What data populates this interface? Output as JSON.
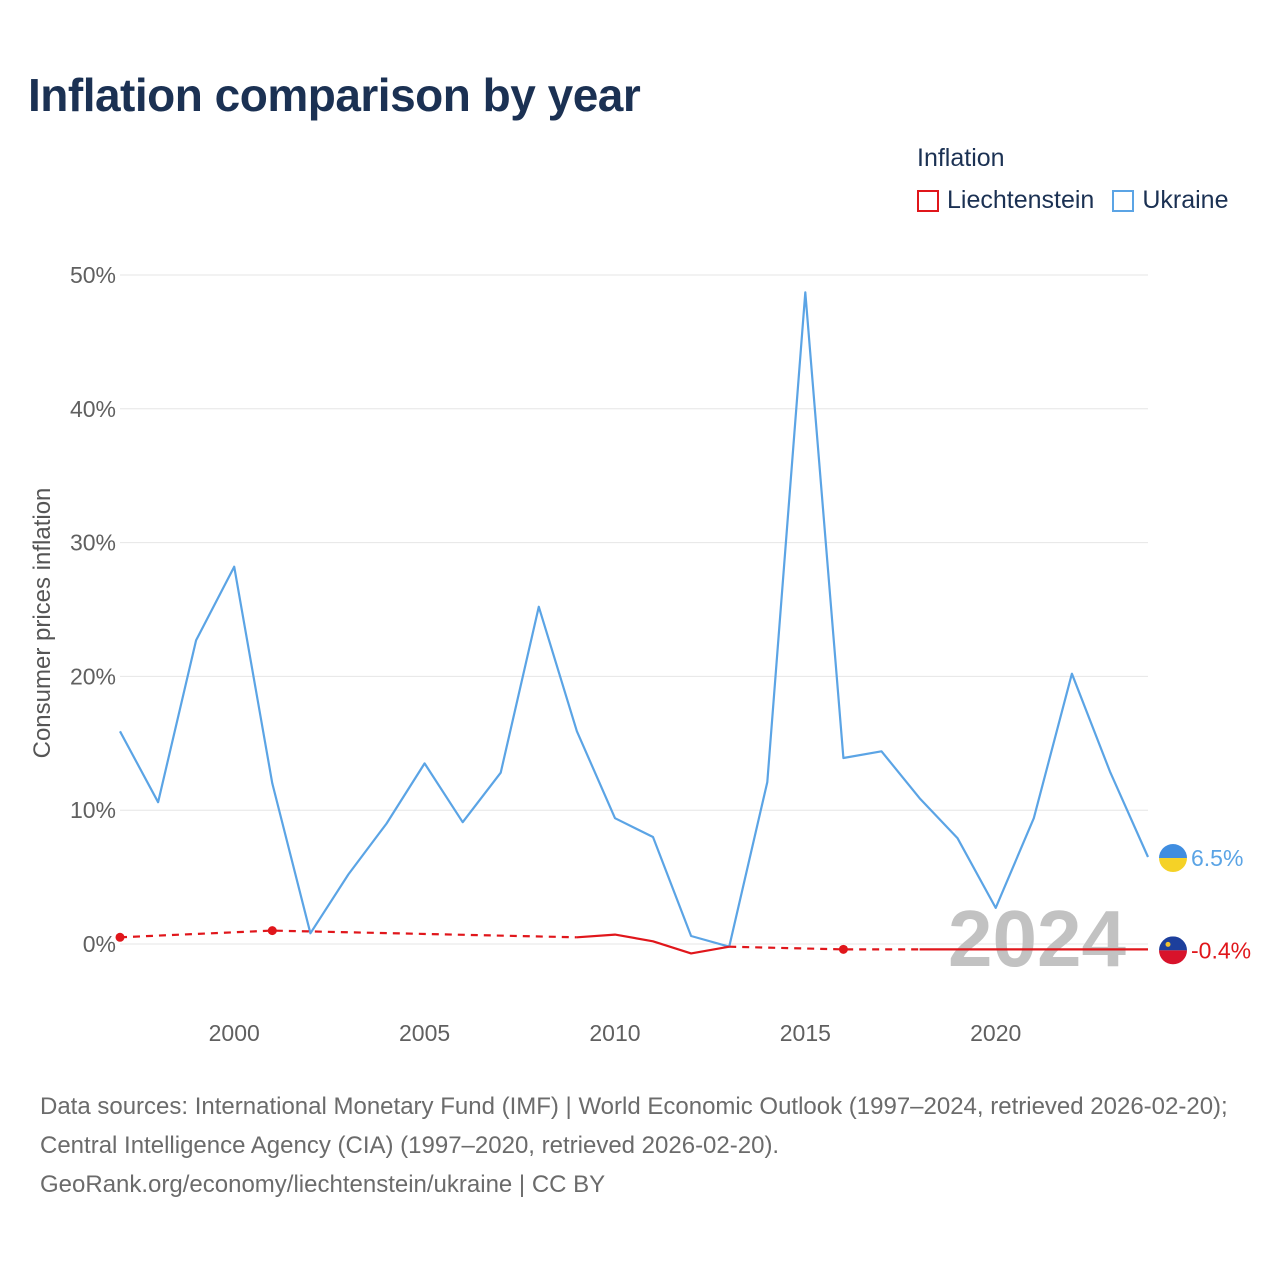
{
  "title": "Inflation comparison by year",
  "legend": {
    "title": "Inflation",
    "items": [
      {
        "label": "Liechtenstein",
        "color": "#e0161b"
      },
      {
        "label": "Ukraine",
        "color": "#5ba4e5"
      }
    ]
  },
  "chart_data": {
    "type": "line",
    "title": "Inflation comparison by year",
    "ylabel": "Consumer prices inflation",
    "xlabel": "",
    "xlim": [
      1997,
      2024
    ],
    "ylim": [
      -5,
      52
    ],
    "x_ticks": [
      2000,
      2005,
      2010,
      2015,
      2020
    ],
    "x_tick_labels": [
      "2000",
      "2005",
      "2010",
      "2015",
      "2020"
    ],
    "y_ticks": [
      0,
      10,
      20,
      30,
      40,
      50
    ],
    "y_tick_labels": [
      "0%",
      "10%",
      "20%",
      "30%",
      "40%",
      "50%"
    ],
    "grid": true,
    "highlight_year": "2024",
    "series": [
      {
        "name": "Ukraine",
        "color": "#5ba4e5",
        "end_label": "6.5%",
        "flag": "ukraine-flag-icon",
        "segments": [
          {
            "style": "solid",
            "points": [
              [
                1997,
                15.9
              ],
              [
                1998,
                10.6
              ],
              [
                1999,
                22.7
              ],
              [
                2000,
                28.2
              ],
              [
                2001,
                12.0
              ],
              [
                2002,
                0.8
              ],
              [
                2003,
                5.2
              ],
              [
                2004,
                9.0
              ],
              [
                2005,
                13.5
              ],
              [
                2006,
                9.1
              ],
              [
                2007,
                12.8
              ],
              [
                2008,
                25.2
              ],
              [
                2009,
                15.9
              ],
              [
                2010,
                9.4
              ],
              [
                2011,
                8.0
              ],
              [
                2012,
                0.6
              ],
              [
                2013,
                -0.2
              ],
              [
                2014,
                12.1
              ],
              [
                2015,
                48.7
              ],
              [
                2016,
                13.9
              ],
              [
                2017,
                14.4
              ],
              [
                2018,
                10.9
              ],
              [
                2019,
                7.9
              ],
              [
                2020,
                2.7
              ],
              [
                2021,
                9.4
              ],
              [
                2022,
                20.2
              ],
              [
                2023,
                12.9
              ],
              [
                2024,
                6.5
              ]
            ]
          }
        ]
      },
      {
        "name": "Liechtenstein",
        "color": "#e0161b",
        "end_label": "-0.4%",
        "flag": "liechtenstein-flag-icon",
        "segments": [
          {
            "style": "dashed",
            "points": [
              [
                1997,
                0.5
              ],
              [
                2001,
                1.0
              ],
              [
                2009,
                0.5
              ]
            ]
          },
          {
            "style": "solid",
            "points": [
              [
                2009,
                0.5
              ],
              [
                2010,
                0.7
              ],
              [
                2011,
                0.2
              ],
              [
                2012,
                -0.7
              ],
              [
                2013,
                -0.2
              ]
            ]
          },
          {
            "style": "dashed",
            "points": [
              [
                2013,
                -0.2
              ],
              [
                2016,
                -0.4
              ],
              [
                2018,
                -0.4
              ]
            ]
          },
          {
            "style": "solid",
            "points": [
              [
                2018,
                -0.4
              ],
              [
                2024,
                -0.4
              ]
            ]
          }
        ],
        "markers": [
          [
            1997,
            0.5
          ],
          [
            2001,
            1.0
          ],
          [
            2016,
            -0.4
          ]
        ]
      }
    ]
  },
  "footer": {
    "line1": "Data sources: International Monetary Fund (IMF) | World Economic Outlook (1997–2024, retrieved 2026-02-20); Central Intelligence Agency (CIA) (1997–2020, retrieved 2026-02-20).",
    "line2": "GeoRank.org/economy/liechtenstein/ukraine | CC BY"
  }
}
